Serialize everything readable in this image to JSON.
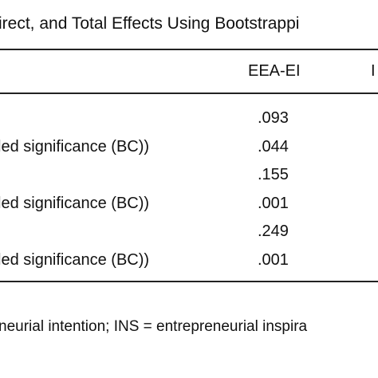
{
  "header": {
    "title": "irect, and Total Effects Using Bootstrappi"
  },
  "table": {
    "columns": [
      "EEA-EI",
      "I"
    ],
    "rows": [
      {
        "value": ".093"
      },
      {
        "label": "led significance (BC))",
        "value": ".044"
      },
      {
        "value": ".155"
      },
      {
        "label": "led significance (BC))",
        "value": ".001"
      },
      {
        "value": ".249"
      },
      {
        "label": "led significance (BC))",
        "value": ".001"
      }
    ]
  },
  "footer": {
    "note": "neurial intention; INS = entrepreneurial inspira"
  }
}
